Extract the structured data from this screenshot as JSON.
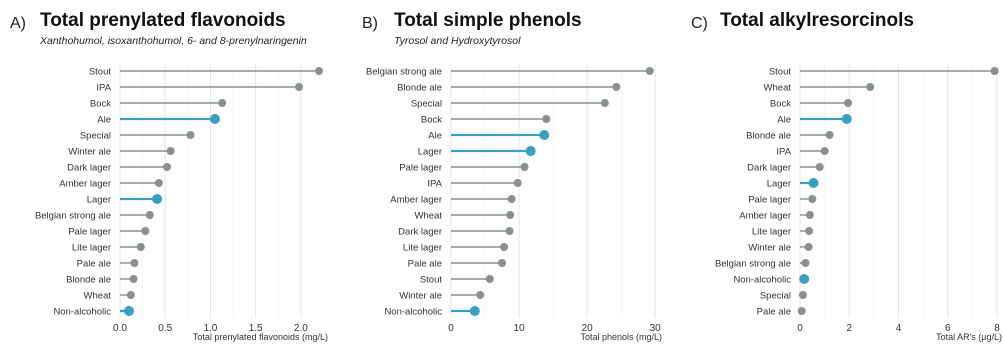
{
  "colors": {
    "gray": "#8a8f92",
    "highlight": "#3aa0bf",
    "grid": "#e3e6e8",
    "text": "#333333"
  },
  "chart_data": [
    {
      "type": "lollipop",
      "letter": "A)",
      "title": "Total prenylated flavonoids",
      "subtitle": "Xanthohumol, isoxanthohumol, 6- and 8-prenylnaringenin",
      "xlabel": "Total prenylated flavonoids (mg/L)",
      "xlim": [
        0,
        2.3
      ],
      "xticks": [
        0.0,
        0.5,
        1.0,
        1.5,
        2.0
      ],
      "xtick_labels": [
        "0.0",
        "0.5",
        "1.0",
        "1.5",
        "2.0"
      ],
      "grid": true,
      "categories": [
        "Stout",
        "IPA",
        "Bock",
        "Ale",
        "Special",
        "Winter ale",
        "Dark lager",
        "Amber lager",
        "Lager",
        "Belgian strong ale",
        "Pale lager",
        "Lite lager",
        "Pale ale",
        "Blonde ale",
        "Wheat",
        "Non-alcoholic"
      ],
      "values": [
        2.2,
        1.98,
        1.13,
        1.05,
        0.78,
        0.56,
        0.52,
        0.43,
        0.41,
        0.33,
        0.28,
        0.23,
        0.16,
        0.15,
        0.12,
        0.1
      ],
      "highlighted": [
        "Ale",
        "Lager",
        "Non-alcoholic"
      ]
    },
    {
      "type": "lollipop",
      "letter": "B)",
      "title": "Total simple phenols",
      "subtitle": "Tyrosol and Hydroxytyrosol",
      "xlabel": "Total phenols (mg/L)",
      "xlim": [
        0,
        31
      ],
      "xticks": [
        0,
        10,
        20,
        30
      ],
      "xtick_labels": [
        "0",
        "10",
        "20",
        "30"
      ],
      "grid": true,
      "categories": [
        "Belgian strong ale",
        "Blonde ale",
        "Special",
        "Bock",
        "Ale",
        "Lager",
        "Pale lager",
        "IPA",
        "Amber lager",
        "Wheat",
        "Dark lager",
        "Lite lager",
        "Pale ale",
        "Stout",
        "Winter ale",
        "Non-alcoholic"
      ],
      "values": [
        29.2,
        24.3,
        22.6,
        14.0,
        13.7,
        11.7,
        10.8,
        9.8,
        8.9,
        8.7,
        8.6,
        7.8,
        7.5,
        5.7,
        4.3,
        3.5
      ],
      "highlighted": [
        "Ale",
        "Lager",
        "Non-alcoholic"
      ]
    },
    {
      "type": "lollipop",
      "letter": "C)",
      "title": "Total alkylresorcinols",
      "subtitle": "",
      "xlabel": "Total AR's (µg/L)",
      "xlim": [
        0,
        8.2
      ],
      "xticks": [
        0,
        2,
        4,
        6,
        8
      ],
      "xtick_labels": [
        "0",
        "2",
        "4",
        "6",
        "8"
      ],
      "grid": true,
      "categories": [
        "Stout",
        "Wheat",
        "Bock",
        "Ale",
        "Blonde ale",
        "IPA",
        "Dark lager",
        "Lager",
        "Pale lager",
        "Amber lager",
        "Lite lager",
        "Winter ale",
        "Belgian strong ale",
        "Non-alcoholic",
        "Special",
        "Pale ale"
      ],
      "values": [
        7.9,
        2.85,
        1.95,
        1.9,
        1.2,
        1.0,
        0.8,
        0.55,
        0.5,
        0.4,
        0.37,
        0.35,
        0.22,
        0.17,
        0.12,
        0.07
      ],
      "highlighted": [
        "Ale",
        "Lager",
        "Non-alcoholic"
      ]
    }
  ]
}
